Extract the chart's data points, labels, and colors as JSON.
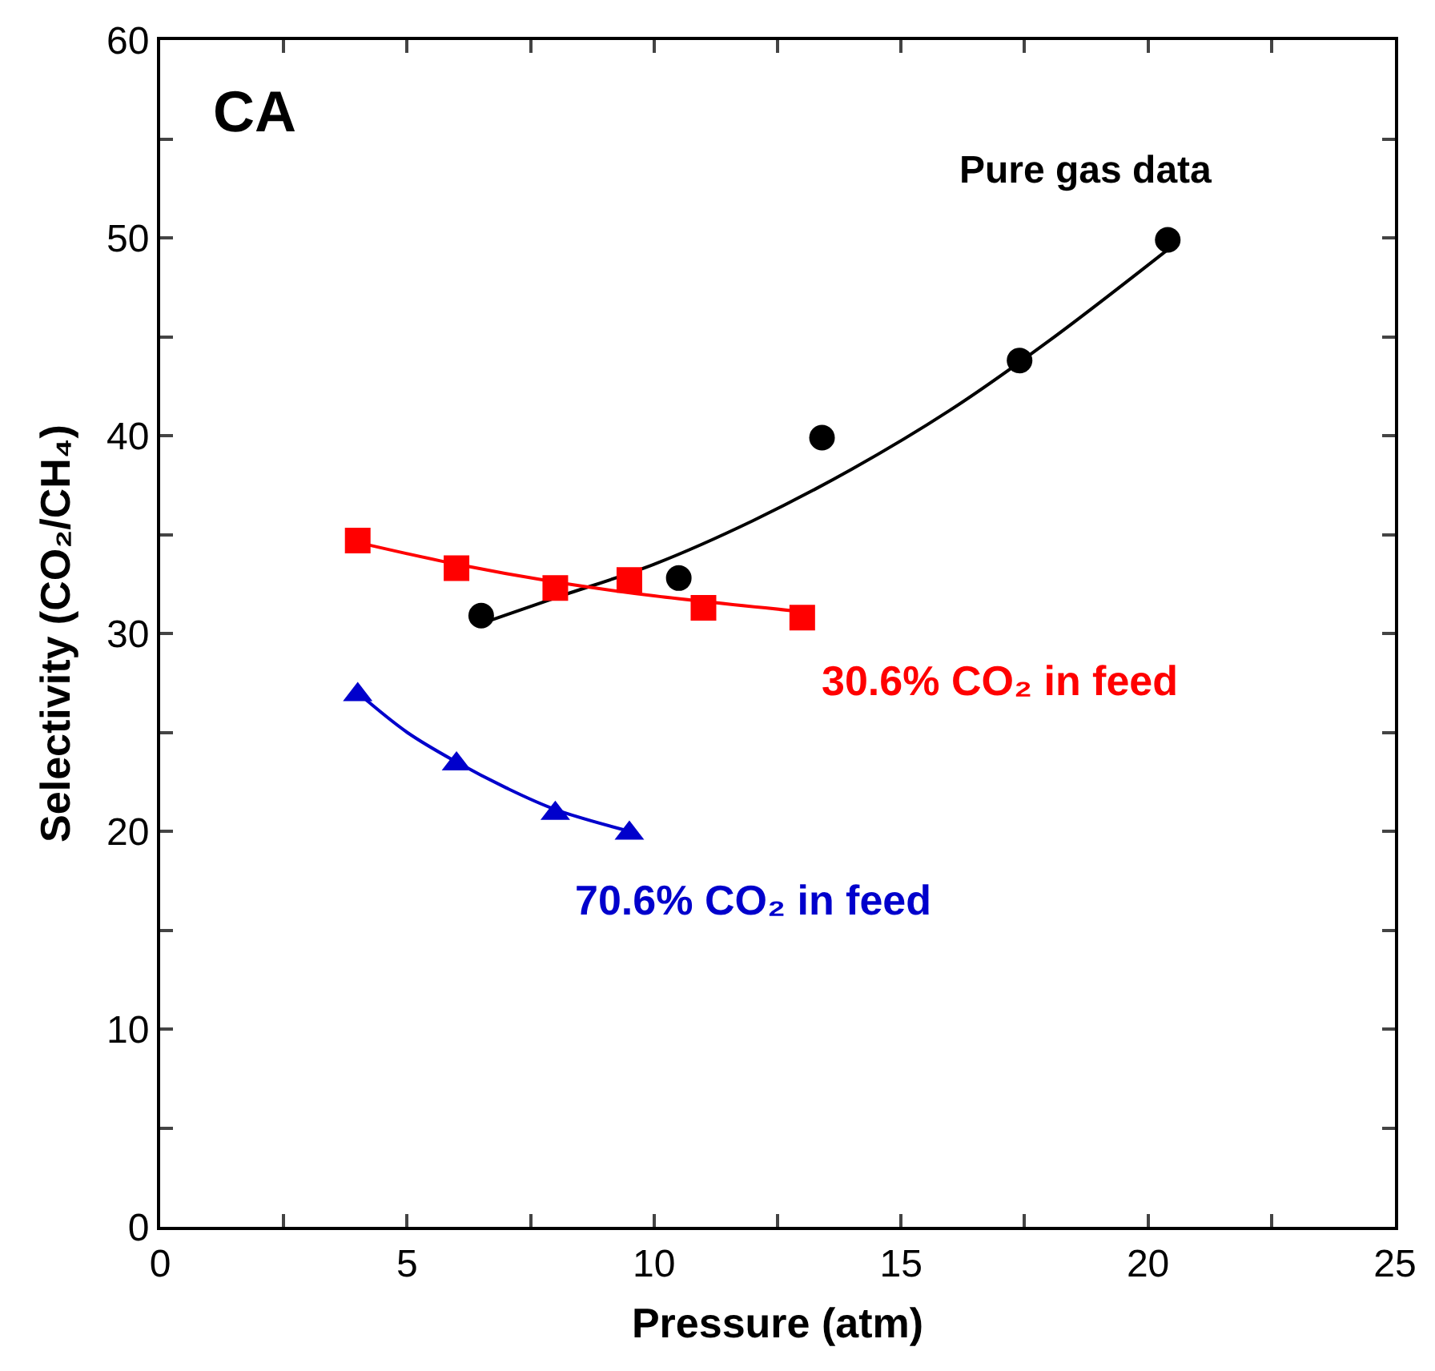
{
  "chart_data": {
    "type": "scatter",
    "xlabel": "Pressure (atm)",
    "ylabel": "Selectivity (CO₂/CH₄)",
    "xlim": [
      0,
      25
    ],
    "xticks": [
      0,
      {
        "value": 2.5,
        "label": null
      },
      5,
      {
        "value": 7.5,
        "label": null
      },
      10,
      {
        "value": 12.5,
        "label": null
      },
      15,
      {
        "value": 17.5,
        "label": null
      },
      20,
      {
        "value": 22.5,
        "label": null
      },
      25
    ],
    "ylim": [
      0,
      60
    ],
    "yticks": [
      0,
      {
        "value": 5,
        "label": null
      },
      10,
      {
        "value": 15,
        "label": null
      },
      20,
      {
        "value": 25,
        "label": null
      },
      30,
      {
        "value": 35,
        "label": null
      },
      40,
      {
        "value": 45,
        "label": null
      },
      50,
      {
        "value": 55,
        "label": null
      },
      60
    ],
    "series": [
      {
        "marker": "circle",
        "color": "#000000",
        "x": [
          6.5,
          10.5,
          13.4,
          17.4,
          20.4
        ],
        "values": [
          30.9,
          32.8,
          39.9,
          43.8,
          49.9
        ]
      },
      {
        "type": "line",
        "marker": "none",
        "color": "#000000",
        "x": [
          6.5,
          8,
          10,
          12,
          14,
          16,
          18,
          20.5
        ],
        "values": [
          30.5,
          31.8,
          33.5,
          35.7,
          38.3,
          41.3,
          44.8,
          49.6
        ]
      },
      {
        "marker": "square",
        "color": "#ff0000",
        "x": [
          4,
          6,
          8,
          9.5,
          11,
          13
        ],
        "values": [
          34.7,
          33.3,
          32.3,
          32.7,
          31.3,
          30.8
        ]
      },
      {
        "type": "line",
        "marker": "none",
        "color": "#ff0000",
        "x": [
          4,
          6,
          8,
          10,
          13
        ],
        "values": [
          34.6,
          33.5,
          32.6,
          31.9,
          31.1
        ]
      },
      {
        "marker": "triangle",
        "color": "#0000cc",
        "x": [
          4,
          6,
          8,
          9.5
        ],
        "values": [
          26.9,
          23.4,
          20.9,
          19.9
        ]
      },
      {
        "type": "line",
        "marker": "none",
        "color": "#0000cc",
        "x": [
          4,
          5,
          6,
          7,
          8,
          9.5
        ],
        "values": [
          27,
          25,
          23.5,
          22.2,
          21.1,
          20
        ]
      }
    ],
    "annotations": [
      "CA",
      "Pure gas data",
      "30.6% CO₂ in feed",
      "70.6% CO₂ in feed"
    ]
  }
}
